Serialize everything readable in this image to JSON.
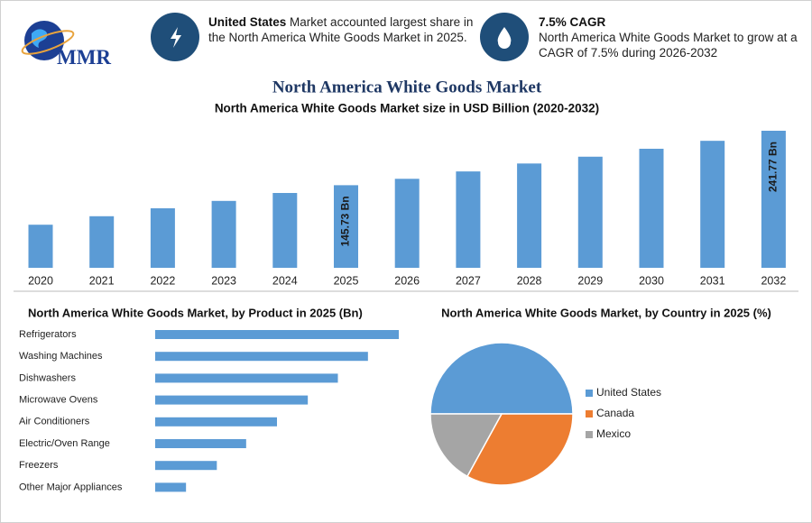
{
  "header": {
    "logo_text": "MMR",
    "box1_bold": "United States",
    "box1_text": "Market accounted largest share in the North America White Goods Market in 2025.",
    "box2_title": "7.5% CAGR",
    "box2_text": "North America White Goods Market to grow at a CAGR of 7.5% during 2026-2032"
  },
  "chart_data": [
    {
      "type": "bar",
      "title": "North America White Goods Market",
      "subtitle": "North America White Goods Market size in USD Billion (2020-2032)",
      "categories": [
        "2020",
        "2021",
        "2022",
        "2023",
        "2024",
        "2025",
        "2026",
        "2027",
        "2028",
        "2029",
        "2030",
        "2031",
        "2032"
      ],
      "values": [
        76,
        91,
        105,
        118,
        132,
        145.73,
        157,
        170,
        184,
        196,
        210,
        224,
        241.77
      ],
      "value_labels": [
        null,
        null,
        null,
        null,
        null,
        "145.73 Bn",
        null,
        null,
        null,
        null,
        null,
        null,
        "241.77 Bn"
      ],
      "color": "#5b9bd5"
    },
    {
      "type": "hbar",
      "title": "North America White Goods Market, by Product in 2025 (Bn)",
      "categories": [
        "Refrigerators",
        "Washing Machines",
        "Dishwashers",
        "Microwave Ovens",
        "Air Conditioners",
        "Electric/Oven Range",
        "Freezers",
        "Other Major Appliances"
      ],
      "values": [
        32.4,
        28.3,
        24.3,
        20.3,
        16.2,
        12.1,
        8.2,
        4.1
      ],
      "color": "#5b9bd5"
    },
    {
      "type": "pie",
      "title": "North America White Goods Market, by Country in 2025 (%)",
      "categories": [
        "United States",
        "Canada",
        "Mexico"
      ],
      "values": [
        50,
        33,
        17
      ],
      "colors": [
        "#5b9bd5",
        "#ed7d31",
        "#a5a5a5"
      ],
      "legend": "right"
    }
  ]
}
